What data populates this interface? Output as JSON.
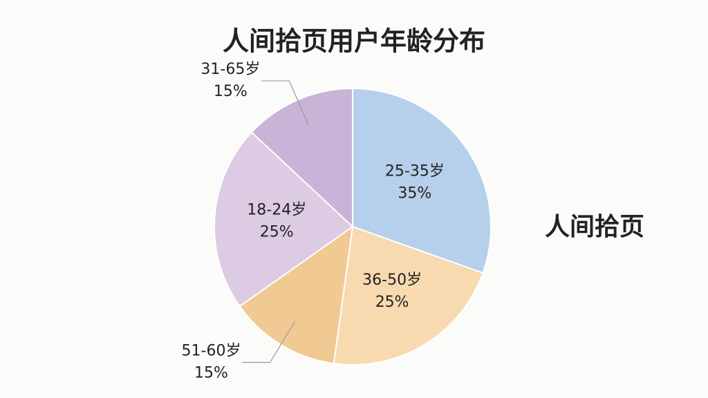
{
  "chart_data": {
    "type": "pie",
    "title": "人间拾页用户年龄分布",
    "brand": "人间拾页",
    "categories": [
      "25-35岁",
      "36-50岁",
      "51-60岁",
      "18-24岁",
      "31-65岁"
    ],
    "values": [
      35,
      25,
      15,
      25,
      15
    ],
    "value_labels": [
      "35%",
      "25%",
      "15%",
      "25%",
      "15%"
    ],
    "colors": [
      "#b6cfea",
      "#f8dab0",
      "#f1c993",
      "#dccbe3",
      "#c9b3d7"
    ]
  }
}
